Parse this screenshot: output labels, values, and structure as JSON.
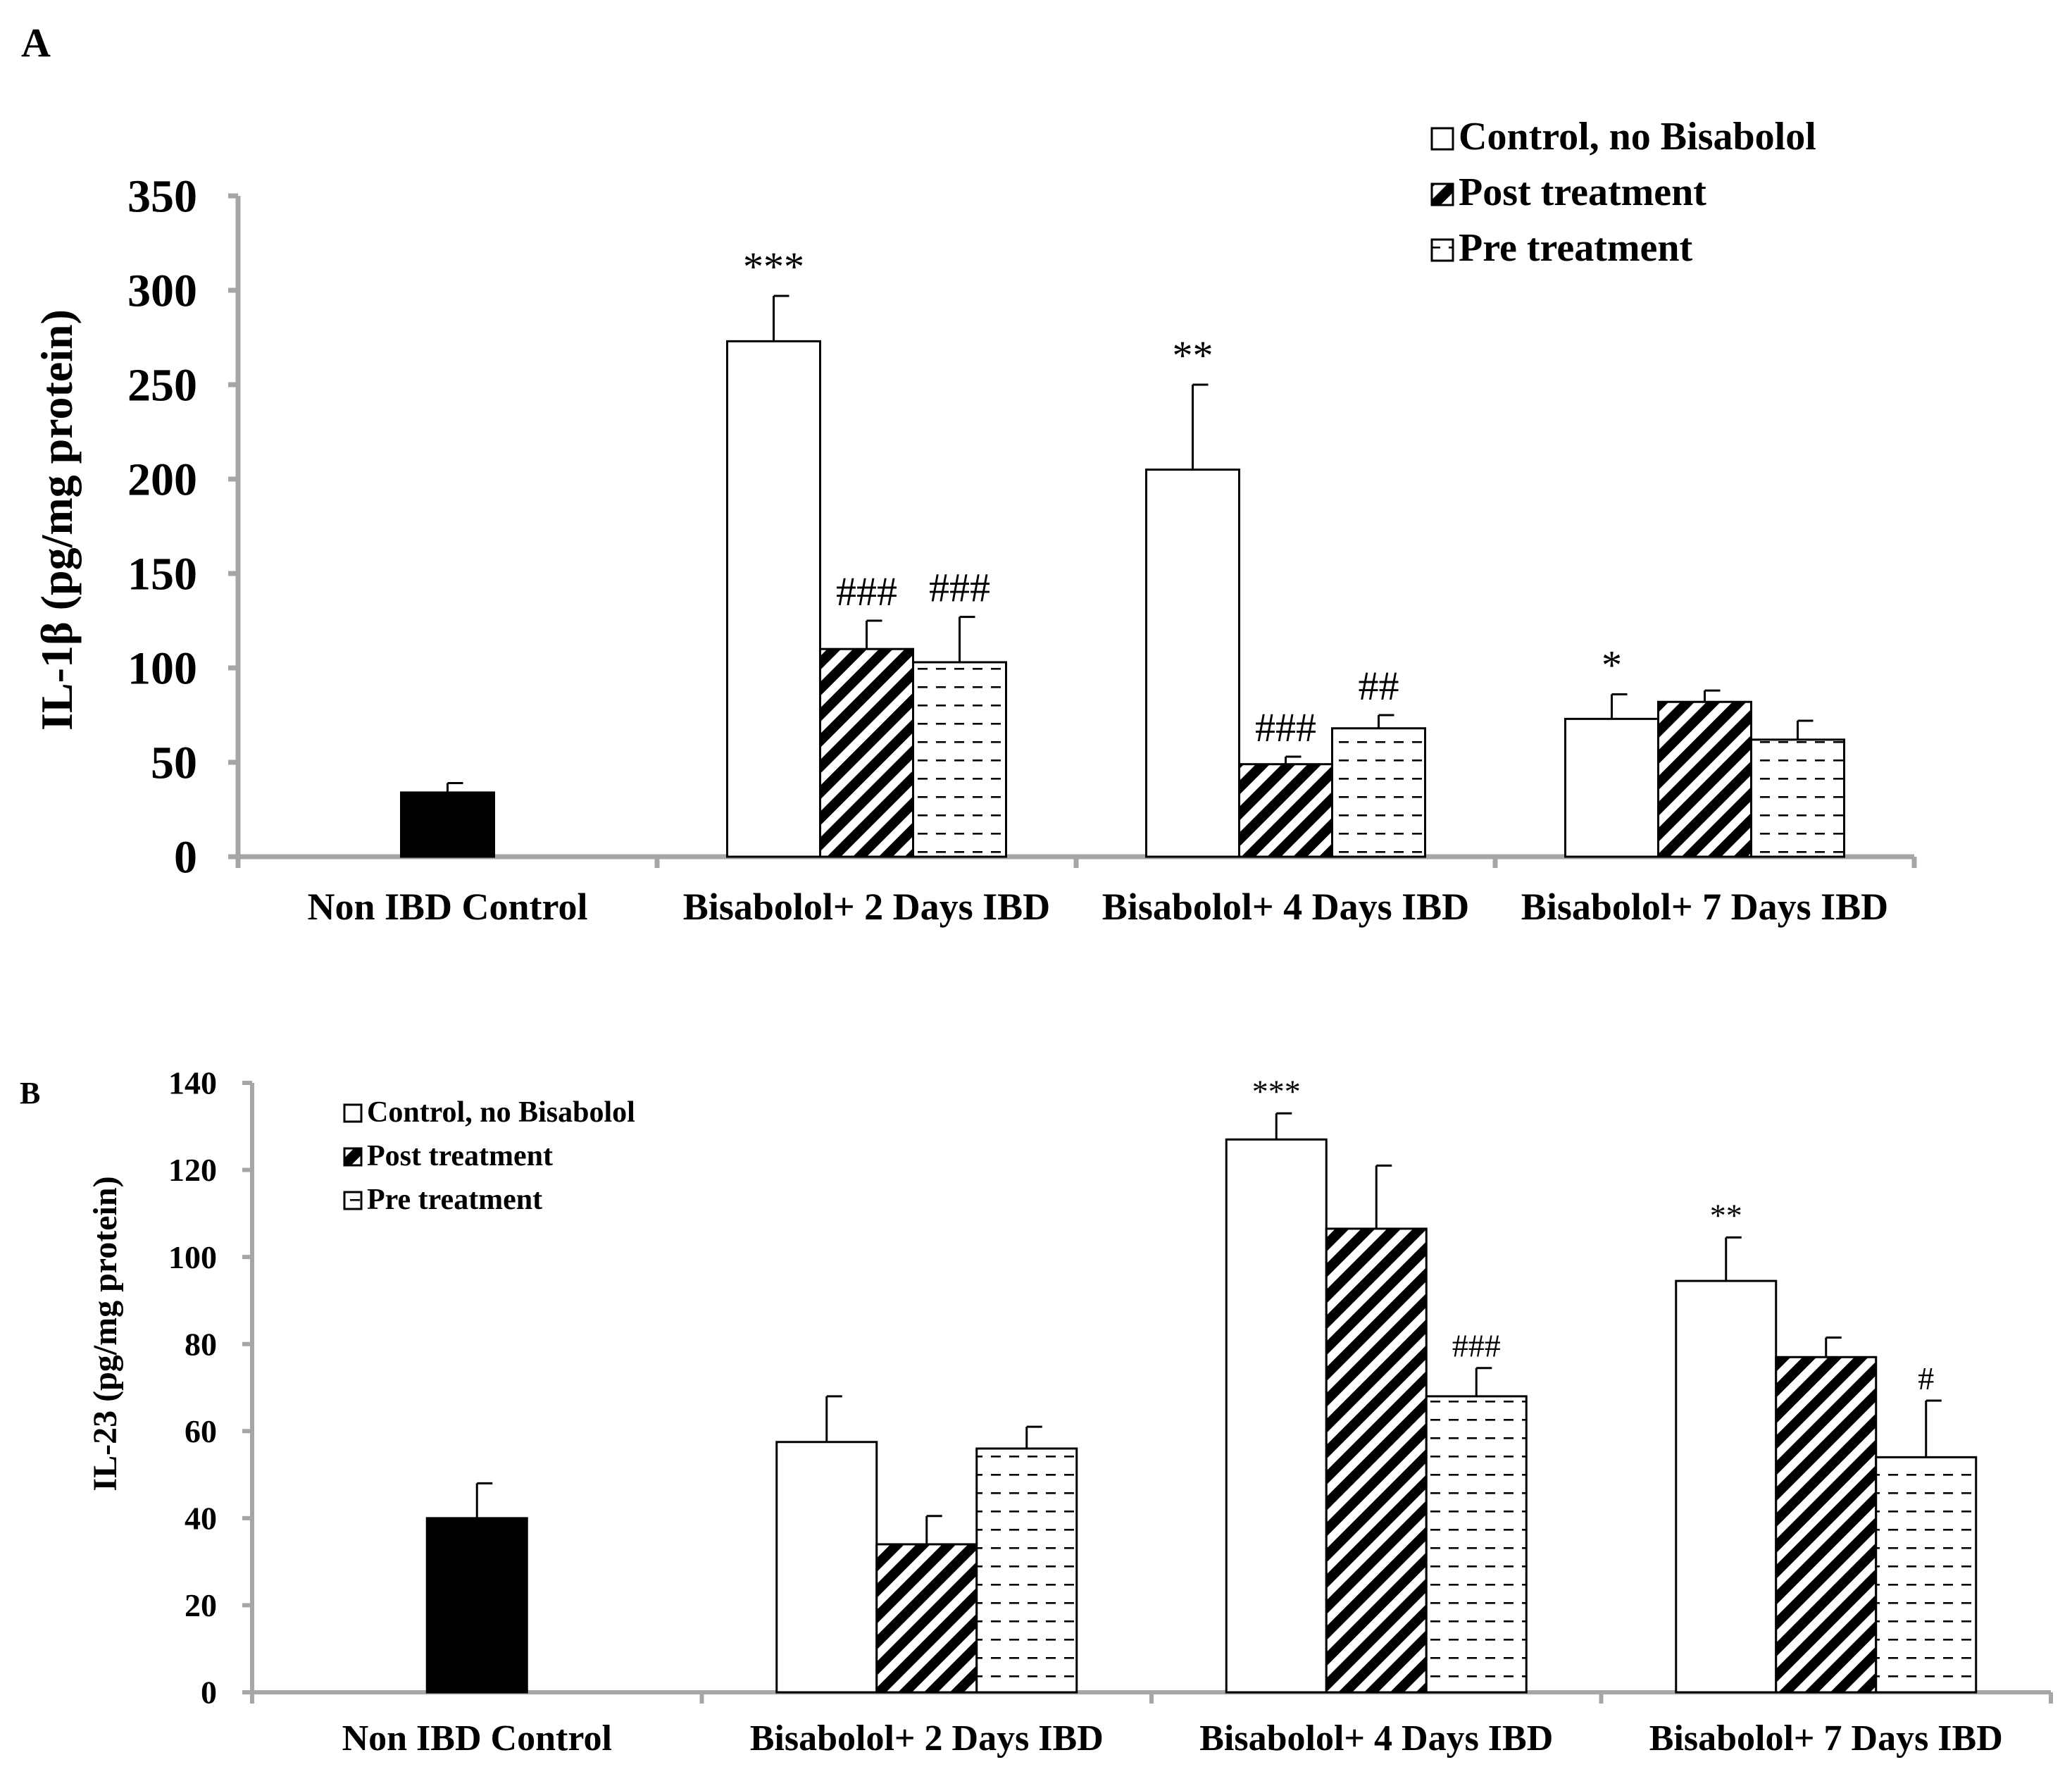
{
  "chart_data": [
    {
      "type": "bar",
      "panel_label": "A",
      "ylabel": "IL-1β (pg/mg protein)",
      "ylim": [
        0,
        350
      ],
      "yticks": [
        0,
        50,
        100,
        150,
        200,
        250,
        300,
        350
      ],
      "categories": [
        "Non IBD Control",
        "Bisabolol+ 2 Days IBD",
        "Bisabolol+ 4 Days IBD",
        "Bisabolol+ 7 Days IBD"
      ],
      "legend_position": "top-right",
      "legend": [
        {
          "label": "Control, no Bisabolol",
          "pattern": "white"
        },
        {
          "label": "Post treatment",
          "pattern": "diagonal-stripes"
        },
        {
          "label": "Pre treatment",
          "pattern": "horizontal-dashes"
        }
      ],
      "control_bar": {
        "value": 34,
        "error": 5,
        "color": "#000000"
      },
      "groups": [
        {
          "category": "Bisabolol+ 2 Days IBD",
          "bars": [
            {
              "series": "Control, no Bisabolol",
              "value": 273,
              "error": 24,
              "annotation": "***"
            },
            {
              "series": "Post treatment",
              "value": 110,
              "error": 15,
              "annotation": "###"
            },
            {
              "series": "Pre treatment",
              "value": 103,
              "error": 24,
              "annotation": "###"
            }
          ]
        },
        {
          "category": "Bisabolol+ 4 Days IBD",
          "bars": [
            {
              "series": "Control, no Bisabolol",
              "value": 205,
              "error": 45,
              "annotation": "**"
            },
            {
              "series": "Post treatment",
              "value": 49,
              "error": 4,
              "annotation": "###"
            },
            {
              "series": "Pre treatment",
              "value": 68,
              "error": 7,
              "annotation": "##"
            }
          ]
        },
        {
          "category": "Bisabolol+ 7 Days IBD",
          "bars": [
            {
              "series": "Control, no Bisabolol",
              "value": 73,
              "error": 13,
              "annotation": "*"
            },
            {
              "series": "Post treatment",
              "value": 82,
              "error": 6,
              "annotation": ""
            },
            {
              "series": "Pre treatment",
              "value": 62,
              "error": 10,
              "annotation": ""
            }
          ]
        }
      ]
    },
    {
      "type": "bar",
      "panel_label": "B",
      "ylabel": "IL-23 (pg/mg protein)",
      "ylim": [
        0,
        140
      ],
      "yticks": [
        0,
        20,
        40,
        60,
        80,
        100,
        120,
        140
      ],
      "categories": [
        "Non IBD Control",
        "Bisabolol+ 2 Days IBD",
        "Bisabolol+ 4 Days IBD",
        "Bisabolol+ 7 Days IBD"
      ],
      "legend_position": "top-left",
      "legend": [
        {
          "label": "Control, no Bisabolol",
          "pattern": "white"
        },
        {
          "label": "Post treatment",
          "pattern": "diagonal-stripes"
        },
        {
          "label": "Pre treatment",
          "pattern": "horizontal-dashes"
        }
      ],
      "control_bar": {
        "value": 40,
        "error": 8,
        "color": "#000000"
      },
      "groups": [
        {
          "category": "Bisabolol+ 2 Days IBD",
          "bars": [
            {
              "series": "Control, no Bisabolol",
              "value": 57.5,
              "error": 10.5,
              "annotation": ""
            },
            {
              "series": "Post treatment",
              "value": 34,
              "error": 6.5,
              "annotation": ""
            },
            {
              "series": "Pre treatment",
              "value": 56,
              "error": 5,
              "annotation": ""
            }
          ]
        },
        {
          "category": "Bisabolol+ 4 Days IBD",
          "bars": [
            {
              "series": "Control, no Bisabolol",
              "value": 127,
              "error": 6,
              "annotation": "***"
            },
            {
              "series": "Post treatment",
              "value": 106.5,
              "error": 14.5,
              "annotation": ""
            },
            {
              "series": "Pre treatment",
              "value": 68,
              "error": 6.5,
              "annotation": "###"
            }
          ]
        },
        {
          "category": "Bisabolol+ 7 Days IBD",
          "bars": [
            {
              "series": "Control, no Bisabolol",
              "value": 94.5,
              "error": 10,
              "annotation": "**"
            },
            {
              "series": "Post treatment",
              "value": 77,
              "error": 4.5,
              "annotation": ""
            },
            {
              "series": "Pre treatment",
              "value": 54,
              "error": 13,
              "annotation": "#"
            }
          ]
        }
      ]
    }
  ]
}
